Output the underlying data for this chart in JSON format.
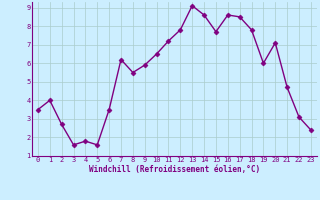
{
  "x": [
    0,
    1,
    2,
    3,
    4,
    5,
    6,
    7,
    8,
    9,
    10,
    11,
    12,
    13,
    14,
    15,
    16,
    17,
    18,
    19,
    20,
    21,
    22,
    23
  ],
  "y": [
    3.5,
    4.0,
    2.7,
    1.6,
    1.8,
    1.6,
    3.5,
    6.2,
    5.5,
    5.9,
    6.5,
    7.2,
    7.8,
    9.1,
    8.6,
    7.7,
    8.6,
    8.5,
    7.8,
    6.0,
    7.1,
    4.7,
    3.1,
    2.4
  ],
  "line_color": "#800080",
  "marker": "D",
  "marker_size": 2.5,
  "bg_color": "#cceeff",
  "grid_color": "#aacccc",
  "xlabel": "Windchill (Refroidissement éolien,°C)",
  "xlabel_color": "#800080",
  "tick_color": "#800080",
  "label_color": "#800080",
  "xlim": [
    -0.5,
    23.5
  ],
  "ylim": [
    1,
    9.3
  ],
  "yticks": [
    1,
    2,
    3,
    4,
    5,
    6,
    7,
    8,
    9
  ],
  "xticks": [
    0,
    1,
    2,
    3,
    4,
    5,
    6,
    7,
    8,
    9,
    10,
    11,
    12,
    13,
    14,
    15,
    16,
    17,
    18,
    19,
    20,
    21,
    22,
    23
  ],
  "xlabel_fontsize": 5.5,
  "tick_fontsize": 5.0,
  "linewidth": 1.0
}
